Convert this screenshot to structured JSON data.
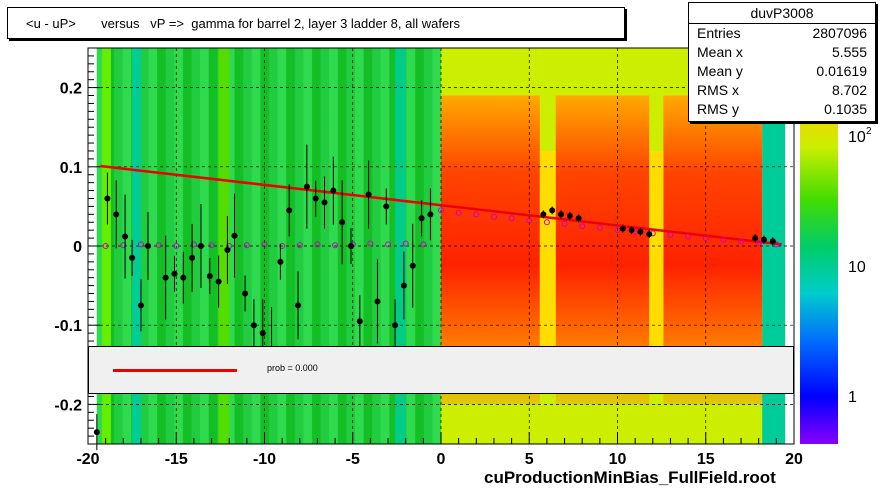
{
  "title": "<u - uP>       versus   vP =>  gamma for barrel 2, layer 3 ladder 8, all wafers",
  "footer": "cuProductionMinBias_FullField.root",
  "stats": {
    "name": "duvP3008",
    "rows": [
      {
        "label": "Entries",
        "value": "2807096"
      },
      {
        "label": "Mean x",
        "value": "5.555"
      },
      {
        "label": "Mean y",
        "value": "0.01619"
      },
      {
        "label": "RMS x",
        "value": "8.702"
      },
      {
        "label": "RMS y",
        "value": "0.1035"
      }
    ]
  },
  "legend": {
    "text": "prob = 0.000"
  },
  "colors": {
    "fit_line": "#ee0000",
    "profile_markers": "#cc00cc",
    "points": "#000000"
  },
  "chart_data": {
    "type": "heatmap",
    "xlim": [
      -20,
      20
    ],
    "ylim": [
      -0.25,
      0.25
    ],
    "x_ticks": [
      "-20",
      "-15",
      "-10",
      "-5",
      "0",
      "5",
      "10",
      "15",
      "20"
    ],
    "y_ticks": [
      "0.2",
      "0.1",
      "0",
      "-0.1",
      "-0.2"
    ],
    "z_ticks": [
      "1",
      "10",
      "10^2"
    ],
    "z_scale": "log",
    "grid": true,
    "fit_line": {
      "x": [
        -19.3,
        19.3
      ],
      "y": [
        0.101,
        0.002
      ]
    },
    "black_points": {
      "x": [
        -19.5,
        -18.9,
        -18.4,
        -17.9,
        -17.5,
        -17.0,
        -16.6,
        -15.6,
        -15.1,
        -14.6,
        -14.1,
        -13.6,
        -13.1,
        -12.6,
        -12.1,
        -11.7,
        -11.1,
        -10.6,
        -10.1,
        -9.6,
        -9.1,
        -8.6,
        -8.1,
        -7.6,
        -7.1,
        -6.6,
        -6.1,
        -5.6,
        -5.1,
        -4.6,
        -4.1,
        -3.6,
        -3.1,
        -2.6,
        -2.1,
        -1.6,
        -1.1,
        -0.6,
        5.8,
        6.3,
        6.8,
        7.3,
        7.8,
        10.3,
        10.8,
        11.3,
        11.8,
        17.8,
        18.3,
        18.8
      ],
      "y": [
        -0.235,
        0.06,
        0.04,
        0.012,
        -0.015,
        -0.075,
        0.0,
        -0.04,
        -0.035,
        -0.04,
        -0.015,
        0.0,
        -0.038,
        -0.045,
        -0.005,
        0.013,
        -0.06,
        -0.1,
        -0.11,
        -0.13,
        -0.02,
        0.045,
        -0.075,
        0.075,
        0.06,
        0.055,
        0.07,
        0.03,
        0.0,
        -0.095,
        0.065,
        -0.07,
        0.05,
        -0.1,
        -0.05,
        -0.025,
        0.035,
        0.04,
        0.04,
        0.045,
        0.04,
        0.038,
        0.035,
        0.022,
        0.02,
        0.018,
        0.015,
        0.01,
        0.008,
        0.006
      ]
    },
    "profile_points": {
      "x": [
        -19.0,
        -18.0,
        -17.0,
        -16.0,
        -15.0,
        -14.0,
        -13.0,
        -12.0,
        -11.0,
        -10.0,
        -9.0,
        -8.0,
        -7.0,
        -6.0,
        -5.0,
        -4.0,
        -3.0,
        -2.0,
        -1.0,
        0.0,
        1.0,
        2.0,
        3.0,
        4.0,
        5.0,
        6.0,
        7.0,
        8.0,
        9.0,
        10.0,
        11.0,
        12.0,
        13.0,
        14.0,
        15.0,
        16.0,
        17.0,
        18.0,
        19.0
      ],
      "y": [
        0.0,
        0.001,
        0.002,
        0.001,
        0.0,
        0.002,
        0.001,
        0.0,
        0.001,
        0.002,
        0.0,
        0.001,
        0.002,
        0.001,
        0.002,
        0.003,
        0.002,
        0.003,
        0.002,
        0.045,
        0.042,
        0.04,
        0.037,
        0.035,
        0.032,
        0.03,
        0.028,
        0.025,
        0.023,
        0.02,
        0.018,
        0.016,
        0.014,
        0.012,
        0.01,
        0.008,
        0.006,
        0.004,
        0.002
      ]
    }
  }
}
